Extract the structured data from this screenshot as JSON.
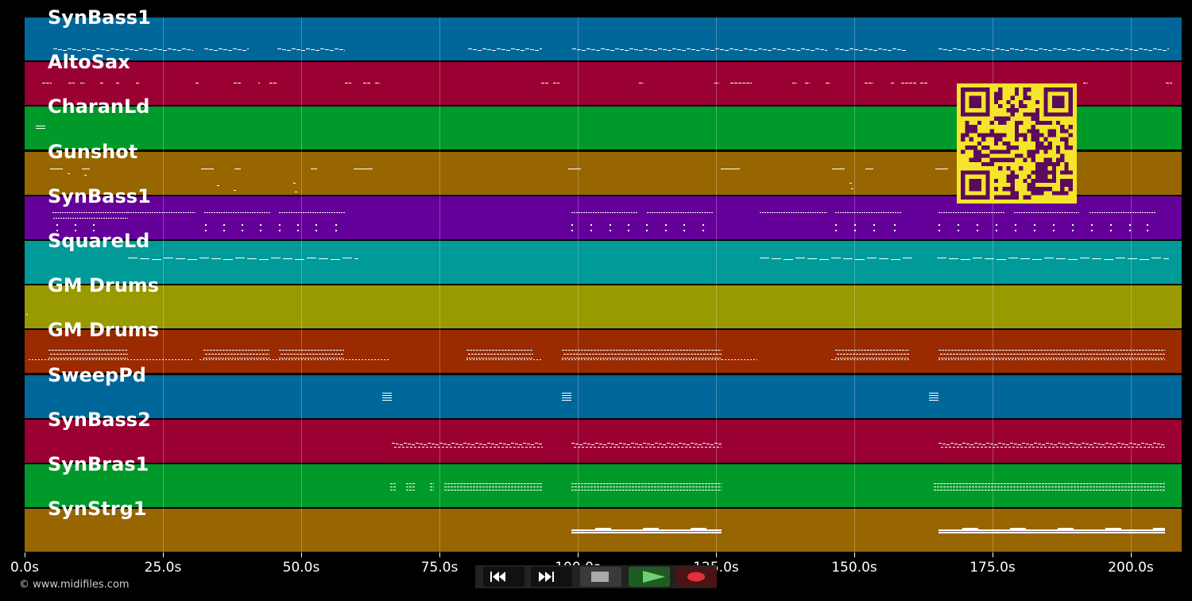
{
  "tracks": [
    {
      "name": "SynBass1",
      "color": "#00679a"
    },
    {
      "name": "AltoSax",
      "color": "#9b0033"
    },
    {
      "name": "CharanLd",
      "color": "#009a2b"
    },
    {
      "name": "Gunshot",
      "color": "#986600"
    },
    {
      "name": "SynBass1",
      "color": "#65009a"
    },
    {
      "name": "SquareLd",
      "color": "#009a98"
    },
    {
      "name": "GM Drums",
      "color": "#989a00"
    },
    {
      "name": "GM Drums",
      "color": "#9a2a00"
    },
    {
      "name": "SweepPd",
      "color": "#00679a"
    },
    {
      "name": "SynBass2",
      "color": "#9b0033"
    },
    {
      "name": "SynBras1",
      "color": "#009a2b"
    },
    {
      "name": "SynStrg1",
      "color": "#986600"
    }
  ],
  "timeline": {
    "ticks": [
      "0.0s",
      "25.0s",
      "50.0s",
      "75.0s",
      "100.0s",
      "125.0s",
      "150.0s",
      "175.0s",
      "200.0s"
    ]
  },
  "credit": "© www.midifiles.com",
  "controls": {
    "rewind": "rewind-icon",
    "forward": "fast-forward-icon",
    "stop": "stop-icon",
    "play": "play-icon",
    "record": "record-icon"
  },
  "colors": {
    "qr_fg": "#5c0a5c",
    "qr_bg": "#f5e52a",
    "play": "#6fd06f",
    "record": "#e0303b"
  }
}
